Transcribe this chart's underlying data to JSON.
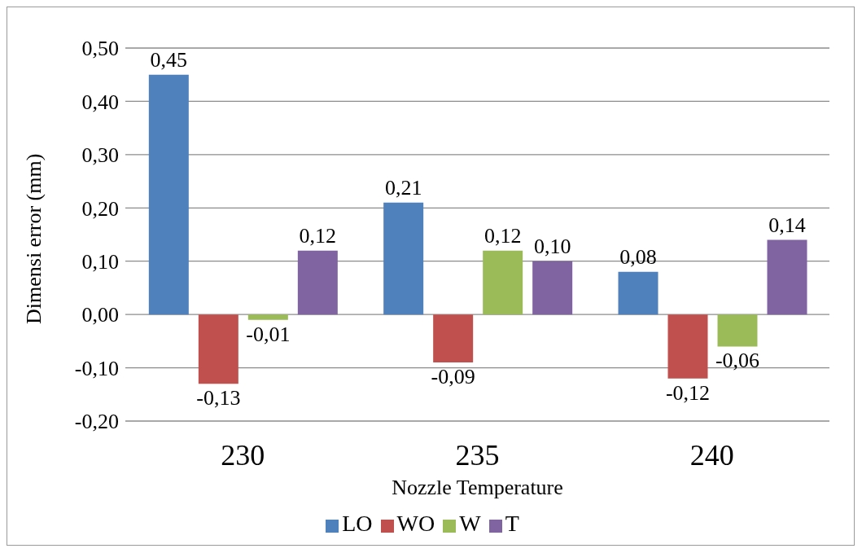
{
  "chart_data": {
    "type": "bar",
    "xlabel": "Nozzle Temperature",
    "ylabel": "Dimensi error (mm)",
    "categories": [
      "230",
      "235",
      "240"
    ],
    "series": [
      {
        "name": "LO",
        "color": "#4f81bd",
        "values": [
          0.45,
          0.21,
          0.08
        ],
        "value_labels": [
          "0,45",
          "0,21",
          "0,08"
        ]
      },
      {
        "name": "WO",
        "color": "#c0504d",
        "values": [
          -0.13,
          -0.09,
          -0.12
        ],
        "value_labels": [
          "-0,13",
          "-0,09",
          "-0,12"
        ]
      },
      {
        "name": "W",
        "color": "#9bbb59",
        "values": [
          -0.01,
          0.12,
          -0.06
        ],
        "value_labels": [
          "-0,01",
          "0,12",
          "-0,06"
        ]
      },
      {
        "name": "T",
        "color": "#8064a2",
        "values": [
          0.12,
          0.1,
          0.14
        ],
        "value_labels": [
          "0,12",
          "0,10",
          "0,14"
        ]
      }
    ],
    "ylim": [
      -0.2,
      0.5
    ],
    "yticks": [
      {
        "value": -0.2,
        "label": "-0,20"
      },
      {
        "value": -0.1,
        "label": "-0,10"
      },
      {
        "value": 0,
        "label": "0,00"
      },
      {
        "value": 0.1,
        "label": "0,10"
      },
      {
        "value": 0.2,
        "label": "0,20"
      },
      {
        "value": 0.3,
        "label": "0,30"
      },
      {
        "value": 0.4,
        "label": "0,40"
      },
      {
        "value": 0.5,
        "label": "0,50"
      }
    ],
    "grid": "y",
    "legend": "bottom"
  }
}
